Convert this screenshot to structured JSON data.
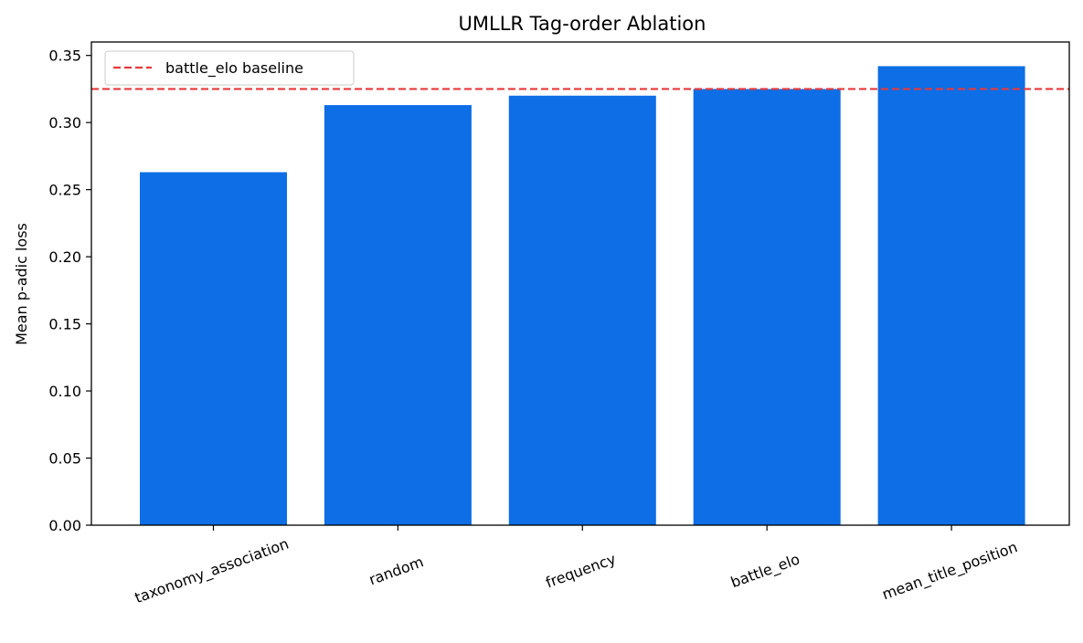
{
  "chart_data": {
    "type": "bar",
    "title": "UMLLR Tag-order Ablation",
    "xlabel": "",
    "ylabel": "Mean p-adic loss",
    "categories": [
      "taxonomy_association",
      "random",
      "frequency",
      "battle_elo",
      "mean_title_position"
    ],
    "values": [
      0.263,
      0.313,
      0.32,
      0.325,
      0.342
    ],
    "ylim": [
      0,
      0.36
    ],
    "yticks": [
      0.0,
      0.05,
      0.1,
      0.15,
      0.2,
      0.25,
      0.3,
      0.35
    ],
    "ytick_labels": [
      "0.00",
      "0.05",
      "0.10",
      "0.15",
      "0.20",
      "0.25",
      "0.30",
      "0.35"
    ],
    "bar_color": "#0d6ee6",
    "baseline": {
      "label": "battle_elo baseline",
      "value": 0.325,
      "color": "#e8393a"
    },
    "legend": {
      "position": "top-left"
    },
    "grid": false
  }
}
